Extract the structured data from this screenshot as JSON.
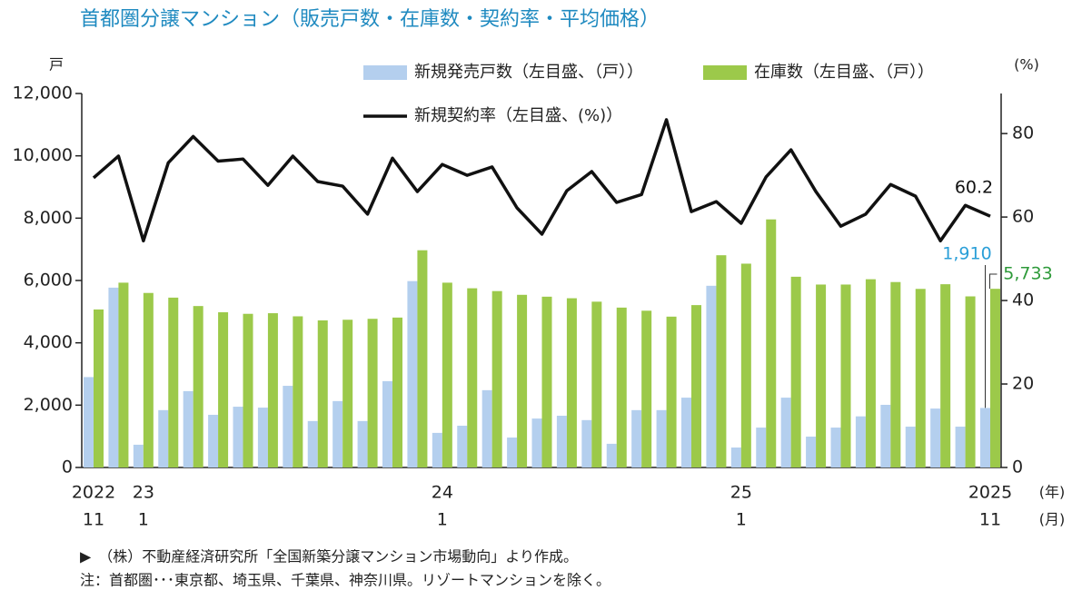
{
  "chart_data": {
    "type": "bar_line",
    "title": "首都圏分譲マンション（販売戸数・在庫数・契約率・平均価格）",
    "y_label": "戸",
    "y2_label": "(%)",
    "x_year_unit": "(年)",
    "x_month_unit": "(月)",
    "category_years": [
      "2022",
      null,
      "23",
      null,
      null,
      null,
      null,
      null,
      null,
      null,
      null,
      null,
      null,
      null,
      "24",
      null,
      null,
      null,
      null,
      null,
      null,
      null,
      null,
      null,
      null,
      null,
      "25",
      null,
      null,
      null,
      null,
      null,
      null,
      null,
      null,
      null,
      "2025"
    ],
    "categories": [
      "11",
      null,
      "1",
      null,
      null,
      null,
      null,
      null,
      null,
      null,
      null,
      null,
      null,
      null,
      "1",
      null,
      null,
      null,
      null,
      null,
      null,
      null,
      null,
      null,
      null,
      null,
      "1",
      null,
      null,
      null,
      null,
      null,
      null,
      null,
      null,
      null,
      "11"
    ],
    "series": [
      {
        "name": "新規発売戸数（左目盛、（戸））",
        "color": "#b4cfee",
        "kind": "bar",
        "label_color": "#2a9fd8",
        "values": [
          2900,
          5770,
          730,
          1840,
          2450,
          1690,
          1950,
          1920,
          2620,
          1490,
          2130,
          1490,
          2770,
          5980,
          1110,
          1340,
          2480,
          960,
          1570,
          1660,
          1520,
          760,
          1840,
          1840,
          2240,
          5830,
          640,
          1280,
          2240,
          990,
          1280,
          1640,
          2010,
          1310,
          1890,
          1310,
          1910
        ],
        "value_labels": [
          null,
          null,
          null,
          null,
          null,
          null,
          null,
          null,
          null,
          null,
          null,
          null,
          null,
          null,
          null,
          null,
          null,
          null,
          null,
          null,
          null,
          null,
          null,
          null,
          null,
          null,
          null,
          null,
          null,
          null,
          null,
          null,
          null,
          null,
          null,
          null,
          "1,910"
        ]
      },
      {
        "name": "在庫数（左目盛、（戸））",
        "color": "#9cc94a",
        "kind": "bar",
        "label_color": "#2e9a3a",
        "values": [
          5070,
          5930,
          5600,
          5450,
          5180,
          4980,
          4930,
          4950,
          4850,
          4720,
          4740,
          4770,
          4810,
          6970,
          5930,
          5750,
          5660,
          5540,
          5480,
          5430,
          5320,
          5130,
          5030,
          4840,
          5210,
          6810,
          6540,
          7960,
          6120,
          5870,
          5870,
          6040,
          5950,
          5730,
          5880,
          5490,
          5733
        ],
        "value_labels": [
          null,
          null,
          null,
          null,
          null,
          null,
          null,
          null,
          null,
          null,
          null,
          null,
          null,
          null,
          null,
          null,
          null,
          null,
          null,
          null,
          null,
          null,
          null,
          null,
          null,
          null,
          null,
          null,
          null,
          null,
          null,
          null,
          null,
          null,
          null,
          null,
          "5,733"
        ]
      },
      {
        "name": "新規契約率（左目盛、(%)）",
        "color": "#111111",
        "kind": "line",
        "axis": "y2",
        "label_color": "#111111",
        "values": [
          69.4,
          74.6,
          54.3,
          73.0,
          79.3,
          73.4,
          73.9,
          67.6,
          74.6,
          68.5,
          67.4,
          60.7,
          74.1,
          66.1,
          72.6,
          70.0,
          72.0,
          62.2,
          55.9,
          66.3,
          70.9,
          63.5,
          65.4,
          83.3,
          61.3,
          63.7,
          58.5,
          69.6,
          76.1,
          66.1,
          57.8,
          60.7,
          67.8,
          65.0,
          54.3,
          62.8,
          60.2
        ],
        "value_labels": [
          null,
          null,
          null,
          null,
          null,
          null,
          null,
          null,
          null,
          null,
          null,
          null,
          null,
          null,
          null,
          null,
          null,
          null,
          null,
          null,
          null,
          null,
          null,
          null,
          null,
          null,
          null,
          null,
          null,
          null,
          null,
          null,
          null,
          null,
          null,
          null,
          "60.2"
        ]
      }
    ],
    "ylim": [
      0,
      12000
    ],
    "yticks": [
      0,
      {
        "value": 2000,
        "label": "2,000"
      },
      {
        "value": 4000,
        "label": "4,000"
      },
      {
        "value": 6000,
        "label": "6,000"
      },
      {
        "value": 8000,
        "label": "8,000"
      },
      {
        "value": 10000,
        "label": "10,000"
      },
      {
        "value": 12000,
        "label": "12,000"
      }
    ],
    "y2lim": [
      0,
      89.6
    ],
    "y2ticks": [
      0,
      20,
      40,
      60,
      80
    ],
    "notes": [
      "▶　（株）不動産経済研究所「全国新築分譲マンション市場動向」より作成。",
      "注：首都圏･･･東京都、埼玉県、千葉県、神奈川県。リゾートマンションを除く。"
    ]
  }
}
